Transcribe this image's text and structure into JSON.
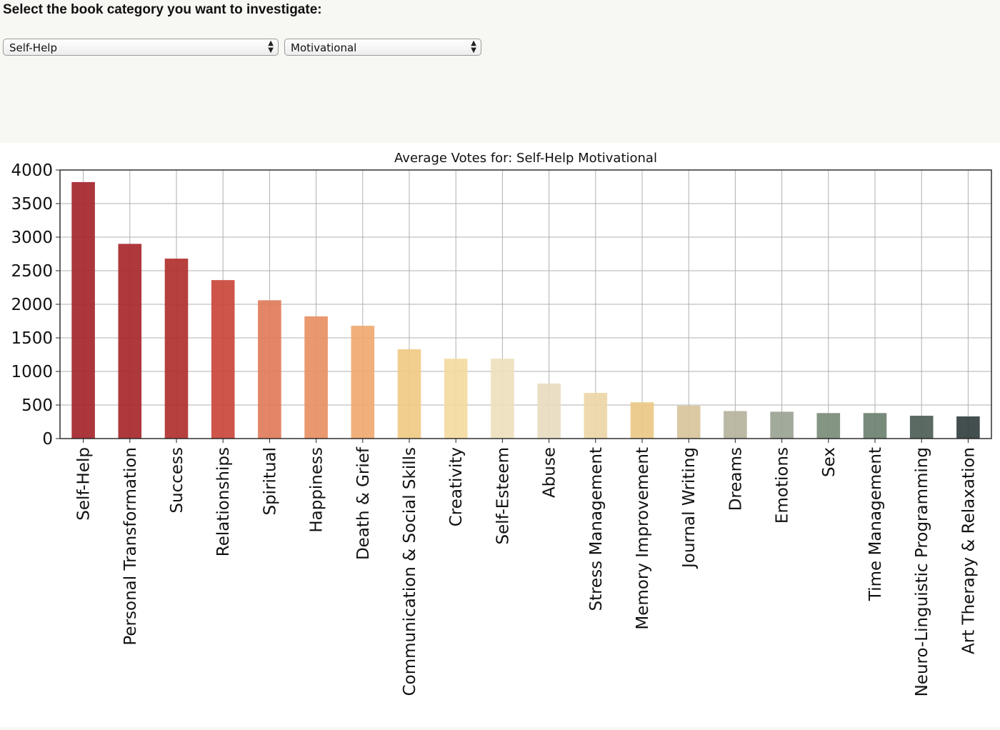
{
  "prompt": "Select the book category you want to investigate:",
  "selects": {
    "category": "Self-Help",
    "subcategory": "Motivational"
  },
  "icons": {
    "select_arrows": "up-down-arrows-icon"
  },
  "chart_data": {
    "type": "bar",
    "title": "Average Votes for: Self-Help Motivational",
    "xlabel": "",
    "ylabel": "",
    "ylim": [
      0,
      4000
    ],
    "yticks": [
      0,
      500,
      1000,
      1500,
      2000,
      2500,
      3000,
      3500,
      4000
    ],
    "grid": true,
    "legend": "none",
    "categories": [
      "Self-Help",
      "Personal Transformation",
      "Success",
      "Relationships",
      "Spiritual",
      "Happiness",
      "Death & Grief",
      "Communication & Social Skills",
      "Creativity",
      "Self-Esteem",
      "Abuse",
      "Stress Management",
      "Memory Improvement",
      "Journal Writing",
      "Dreams",
      "Emotions",
      "Sex",
      "Time Management",
      "Neuro-Linguistic Programming",
      "Art Therapy & Relaxation"
    ],
    "values": [
      3820,
      2900,
      2680,
      2360,
      2060,
      1820,
      1680,
      1330,
      1190,
      1190,
      820,
      680,
      540,
      490,
      410,
      400,
      380,
      380,
      340,
      330
    ],
    "colors": [
      "#a4262c",
      "#a6282d",
      "#b0302c",
      "#c9473a",
      "#e17c5a",
      "#e88f63",
      "#f0a970",
      "#f1ca84",
      "#f3da9f",
      "#ede0bd",
      "#e8dcc0",
      "#edd6a8",
      "#ecc986",
      "#d8c49c",
      "#b5b39c",
      "#9aa393",
      "#7b8c7a",
      "#6d8170",
      "#4d5d55",
      "#333f3f"
    ]
  }
}
